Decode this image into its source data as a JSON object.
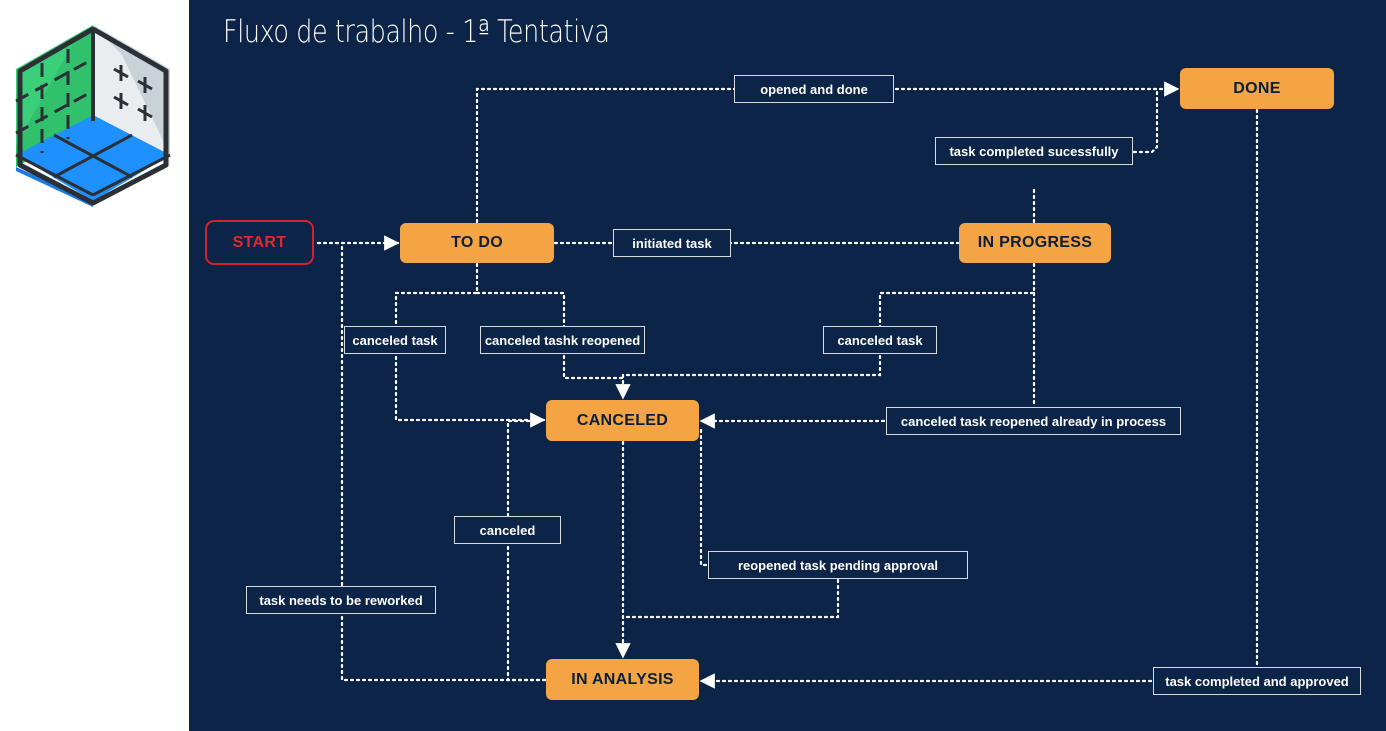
{
  "title": "Fluxo de trabalho - 1ª Tentativa",
  "colors": {
    "background": "#0b2447",
    "node": "#f4a443",
    "start_border": "#d4222a",
    "connector": "#ffffff"
  },
  "logo": {
    "icon": "isometric-cube-logo-icon"
  },
  "nodes": {
    "start": "START",
    "todo": "TO DO",
    "in_progress": "IN PROGRESS",
    "done": "DONE",
    "canceled": "CANCELED",
    "in_analysis": "IN ANALYSIS"
  },
  "labels": {
    "opened_and_done": "opened and done",
    "task_completed_sucessfully": "task completed sucessfully",
    "initiated_task": "initiated task",
    "canceled_task_left": "canceled task",
    "canceled_tashk_reopened": "canceled tashk reopened",
    "canceled_task_right": "canceled task",
    "canceled_task_reopened_already_in_process": "canceled task reopened already in process",
    "canceled": "canceled",
    "reopened_task_pending_approval": "reopened task pending approval",
    "task_needs_to_be_reworked": "task needs to be reworked",
    "task_completed_and_approved": "task completed and approved"
  }
}
